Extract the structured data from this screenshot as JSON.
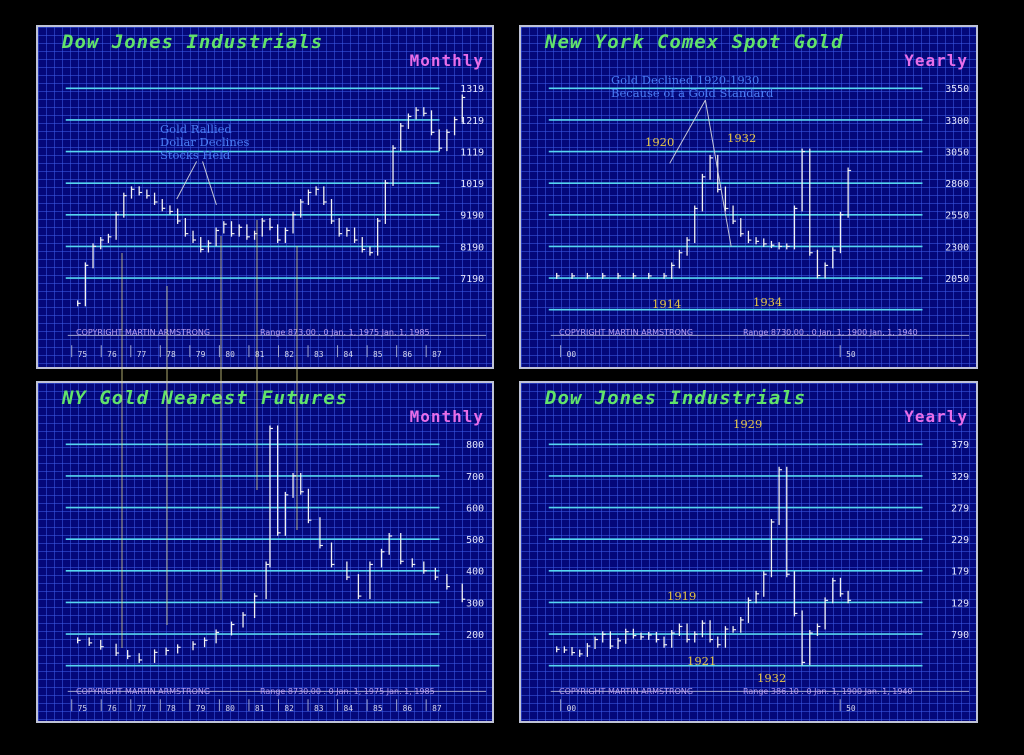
{
  "charts": {
    "tl": {
      "title": "Dow Jones Industrials",
      "frequency": "Monthly",
      "copyright": "COPYRIGHT MARTIN ARMSTRONG",
      "range": "Range   873.00 . 0  Jan.   1,  1975  Jan.   1,   1985",
      "annotations": [
        "Gold Rallied",
        "Dollar Declines",
        "Stocks Held"
      ],
      "y_labels": [
        "1319",
        "1219",
        "1119",
        "1019",
        "9190",
        "8190",
        "7190"
      ],
      "x_labels": [
        "75",
        "76",
        "77",
        "78",
        "79",
        "80",
        "81",
        "82",
        "83",
        "84",
        "85",
        "86",
        "87"
      ]
    },
    "tr": {
      "title": "New York Comex Spot Gold",
      "frequency": "Yearly",
      "copyright": "COPYRIGHT MARTIN ARMSTRONG",
      "range": "Range    8730.00 . 0  Jan.   1,   1900  Jan.   1,   1940",
      "annotations": [
        "Gold Declined 1920-1930",
        "Because of a Gold Standard"
      ],
      "year_labels": [
        "1920",
        "1932",
        "1914",
        "1934"
      ],
      "y_labels": [
        "3550",
        "3300",
        "3050",
        "2800",
        "2550",
        "2300",
        "2050"
      ],
      "x_labels": [
        "00",
        "50"
      ]
    },
    "bl": {
      "title": "NY Gold Nearest Futures",
      "frequency": "Monthly",
      "copyright": "COPYRIGHT MARTIN ARMSTRONG",
      "range": "Range   8730.00 . 0  Jan.   1,  1975  Jan.   1,   1985",
      "y_labels": [
        "800",
        "700",
        "600",
        "500",
        "400",
        "300",
        "200"
      ],
      "x_labels": [
        "75",
        "76",
        "77",
        "78",
        "79",
        "80",
        "81",
        "82",
        "83",
        "84",
        "85",
        "86",
        "87"
      ]
    },
    "br": {
      "title": "Dow Jones Industrials",
      "frequency": "Yearly",
      "copyright": "COPYRIGHT MARTIN ARMSTRONG",
      "range": "Range   386.10 . 0  Jan.   1,  1900  Jan.   1,   1940",
      "year_labels": [
        "1929",
        "1919",
        "1921",
        "1932"
      ],
      "y_labels": [
        "379",
        "329",
        "279",
        "229",
        "179",
        "129",
        "790"
      ],
      "x_labels": [
        "00",
        "50"
      ]
    }
  },
  "chart_data": [
    {
      "type": "line",
      "title": "Dow Jones Industrials",
      "frequency": "Monthly",
      "x_range": [
        1975,
        1987
      ],
      "x": [
        1975.0,
        1975.2,
        1975.4,
        1975.6,
        1975.8,
        1976.0,
        1976.2,
        1976.4,
        1976.6,
        1976.8,
        1977.0,
        1977.2,
        1977.4,
        1977.6,
        1977.8,
        1978.0,
        1978.2,
        1978.4,
        1978.6,
        1978.8,
        1979.0,
        1979.2,
        1979.4,
        1979.6,
        1979.8,
        1980.0,
        1980.2,
        1980.4,
        1980.6,
        1980.8,
        1981.0,
        1981.2,
        1981.4,
        1981.6,
        1981.8,
        1982.0,
        1982.2,
        1982.4,
        1982.6,
        1982.8,
        1983.0,
        1983.2,
        1983.4,
        1983.6,
        1983.8,
        1984.0,
        1984.2,
        1984.4,
        1984.6,
        1984.8,
        1985.0
      ],
      "y": [
        640,
        760,
        820,
        840,
        850,
        920,
        980,
        1000,
        990,
        980,
        960,
        940,
        930,
        900,
        860,
        840,
        810,
        830,
        870,
        890,
        860,
        880,
        850,
        860,
        900,
        880,
        840,
        870,
        920,
        960,
        990,
        1000,
        960,
        900,
        860,
        870,
        840,
        810,
        800,
        900,
        1020,
        1130,
        1200,
        1230,
        1250,
        1240,
        1180,
        1130,
        1180,
        1220,
        1290
      ],
      "annotations": [
        "Gold Rallied",
        "Dollar Declines",
        "Stocks Held"
      ]
    },
    {
      "type": "line",
      "title": "New York Comex Spot Gold",
      "frequency": "Yearly",
      "x_range": [
        1900,
        1950
      ],
      "x": [
        1900,
        1902,
        1904,
        1906,
        1908,
        1910,
        1912,
        1914,
        1915,
        1916,
        1917,
        1918,
        1919,
        1920,
        1921,
        1922,
        1923,
        1924,
        1925,
        1926,
        1927,
        1928,
        1929,
        1930,
        1931,
        1932,
        1933,
        1934,
        1935,
        1936,
        1937,
        1938
      ],
      "y": [
        2067,
        2067,
        2067,
        2067,
        2067,
        2067,
        2067,
        2067,
        2150,
        2250,
        2350,
        2600,
        2850,
        3000,
        2750,
        2600,
        2500,
        2400,
        2350,
        2340,
        2320,
        2310,
        2300,
        2300,
        2600,
        3050,
        2250,
        2070,
        2150,
        2270,
        2550,
        2900
      ],
      "annotations": [
        "Gold Declined 1920-1930",
        "Because of a Gold Standard"
      ],
      "labeled_years": [
        "1920",
        "1932",
        "1914",
        "1934"
      ]
    },
    {
      "type": "line",
      "title": "NY Gold Nearest Futures",
      "frequency": "Monthly",
      "x_range": [
        1975,
        1987
      ],
      "x": [
        1975.0,
        1975.3,
        1975.6,
        1976.0,
        1976.3,
        1976.6,
        1977.0,
        1977.3,
        1977.6,
        1978.0,
        1978.3,
        1978.6,
        1979.0,
        1979.3,
        1979.6,
        1979.9,
        1980.0,
        1980.2,
        1980.4,
        1980.6,
        1980.8,
        1981.0,
        1981.3,
        1981.6,
        1982.0,
        1982.3,
        1982.6,
        1982.9,
        1983.1,
        1983.4,
        1983.7,
        1984.0,
        1984.3,
        1984.6,
        1985.0
      ],
      "y": [
        180,
        172,
        160,
        140,
        130,
        118,
        142,
        148,
        158,
        168,
        180,
        205,
        230,
        260,
        320,
        420,
        850,
        520,
        640,
        700,
        650,
        560,
        480,
        420,
        380,
        320,
        420,
        460,
        510,
        430,
        420,
        400,
        380,
        350,
        310
      ]
    },
    {
      "type": "line",
      "title": "Dow Jones Industrials",
      "frequency": "Yearly",
      "x_range": [
        1900,
        1950
      ],
      "x": [
        1900,
        1901,
        1902,
        1903,
        1904,
        1905,
        1906,
        1907,
        1908,
        1909,
        1910,
        1911,
        1912,
        1913,
        1914,
        1915,
        1916,
        1917,
        1918,
        1919,
        1920,
        1921,
        1922,
        1923,
        1924,
        1925,
        1926,
        1927,
        1928,
        1929,
        1930,
        1931,
        1932,
        1933,
        1934,
        1935,
        1936,
        1937,
        1938
      ],
      "y": [
        65,
        64,
        60,
        58,
        70,
        80,
        88,
        70,
        78,
        92,
        86,
        84,
        87,
        80,
        72,
        90,
        100,
        80,
        88,
        105,
        80,
        72,
        96,
        95,
        110,
        140,
        150,
        180,
        260,
        340,
        180,
        120,
        45,
        90,
        100,
        140,
        170,
        150,
        140
      ],
      "labeled_years": [
        "1929",
        "1919",
        "1921",
        "1932"
      ]
    }
  ]
}
